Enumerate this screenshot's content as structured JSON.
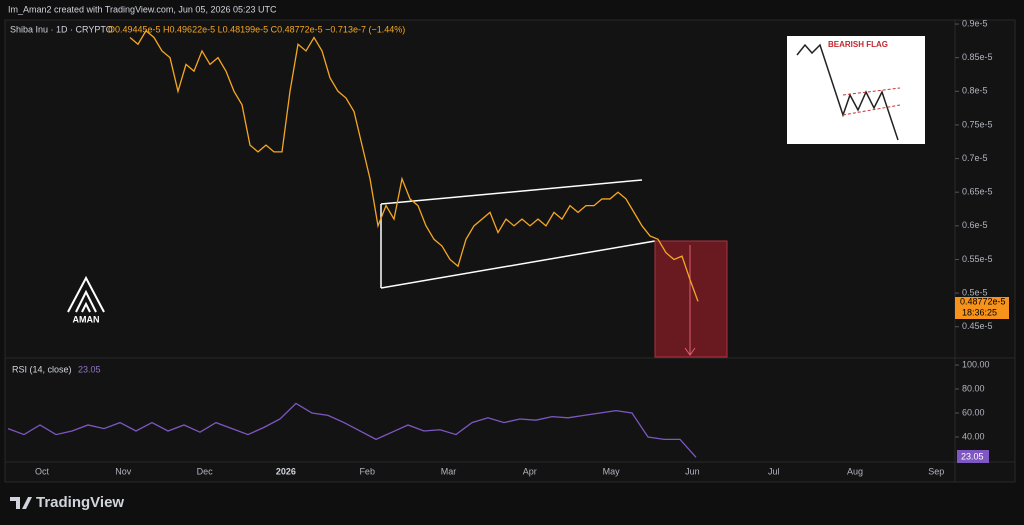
{
  "header": {
    "author": "Im_Aman2 created with TradingView.com, Jun 05, 2026 05:23 UTC"
  },
  "legend": {
    "symbol": "Shiba Inu · 1D · CRYPTO",
    "ohlc": "O0.49445e-5 H0.49622e-5 L0.48199e-5 C0.48772e-5 −0.713e-7 (−1.44%)"
  },
  "inset": {
    "label": "BEARISH FLAG"
  },
  "logo": {
    "label": "AMAN"
  },
  "footer": {
    "brand": "TradingView"
  },
  "chart_data": [
    {
      "type": "line",
      "name": "Shiba Inu",
      "color": "#f5a623",
      "values": [
        0.88,
        0.87,
        0.89,
        0.88,
        0.86,
        0.85,
        0.8,
        0.84,
        0.83,
        0.86,
        0.84,
        0.85,
        0.83,
        0.8,
        0.78,
        0.72,
        0.71,
        0.72,
        0.71,
        0.71,
        0.8,
        0.87,
        0.86,
        0.88,
        0.86,
        0.82,
        0.8,
        0.79,
        0.77,
        0.72,
        0.67,
        0.6,
        0.63,
        0.61,
        0.67,
        0.64,
        0.63,
        0.6,
        0.58,
        0.57,
        0.55,
        0.54,
        0.58,
        0.6,
        0.61,
        0.62,
        0.59,
        0.61,
        0.6,
        0.61,
        0.6,
        0.61,
        0.6,
        0.62,
        0.61,
        0.63,
        0.62,
        0.63,
        0.63,
        0.64,
        0.64,
        0.65,
        0.64,
        0.62,
        0.6,
        0.585,
        0.58,
        0.56,
        0.55,
        0.555,
        0.52,
        0.48772
      ],
      "last_label": "0.48772e-5",
      "countdown": "18:36:25",
      "ylim": [
        0.405,
        0.906
      ],
      "yticks": [
        {
          "value": 0.9,
          "label": "0.9e-5"
        },
        {
          "value": 0.85,
          "label": "0.85e-5"
        },
        {
          "value": 0.8,
          "label": "0.8e-5"
        },
        {
          "value": 0.75,
          "label": "0.75e-5"
        },
        {
          "value": 0.7,
          "label": "0.7e-5"
        },
        {
          "value": 0.65,
          "label": "0.65e-5"
        },
        {
          "value": 0.6,
          "label": "0.6e-5"
        },
        {
          "value": 0.55,
          "label": "0.55e-5"
        },
        {
          "value": 0.5,
          "label": "0.5e-5"
        },
        {
          "value": 0.45,
          "label": "0.45e-5"
        }
      ],
      "xticks": [
        "Oct",
        "Nov",
        "Dec",
        "2026",
        "Feb",
        "Mar",
        "Apr",
        "May",
        "Jun",
        "Jul",
        "Aug",
        "Sep"
      ]
    },
    {
      "type": "line",
      "title": "RSI (14, close)",
      "color": "#7e57c2",
      "values": [
        47,
        42,
        50,
        42,
        45,
        50,
        47,
        52,
        45,
        52,
        45,
        50,
        44,
        52,
        47,
        42,
        48,
        55,
        68,
        60,
        58,
        52,
        45,
        38,
        44,
        50,
        45,
        46,
        42,
        52,
        56,
        52,
        55,
        54,
        57,
        56,
        58,
        60,
        62,
        60,
        40,
        38,
        38,
        23.05
      ],
      "last_label": "23.05",
      "ylim": [
        20.8,
        104.2
      ],
      "yticks": [
        {
          "value": 100,
          "label": "100.00"
        },
        {
          "value": 80,
          "label": "80.00"
        },
        {
          "value": 60,
          "label": "60.00"
        },
        {
          "value": 40,
          "label": "40.00"
        }
      ]
    }
  ]
}
